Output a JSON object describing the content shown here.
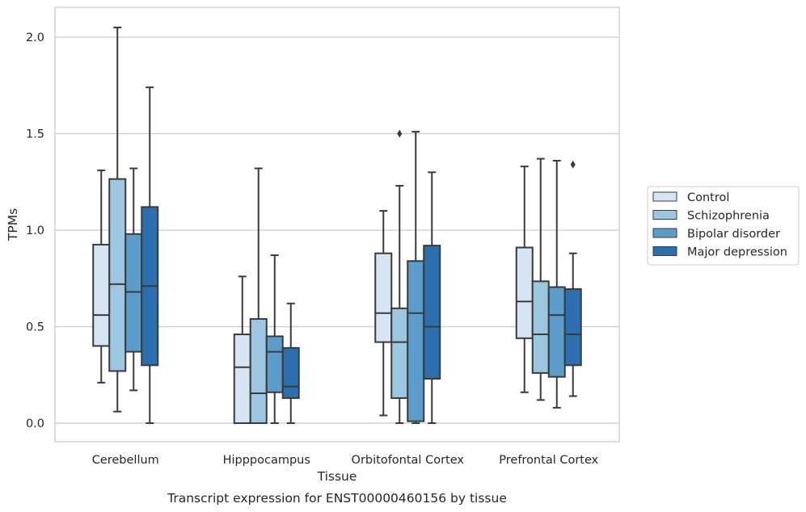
{
  "chart_data": {
    "type": "box",
    "caption": "Transcript expression for ENST00000460156 by tissue",
    "xlabel": "Tissue",
    "ylabel": "TPMs",
    "ylim": [
      -0.1,
      2.15
    ],
    "yticks": [
      "0.0",
      "0.5",
      "1.0",
      "1.5",
      "2.0"
    ],
    "grid": "horizontal",
    "legend_position": "right",
    "categories": [
      "Cerebellum",
      "Hipppocampus",
      "Orbitofontal Cortex",
      "Prefrontal Cortex"
    ],
    "series": [
      {
        "name": "Control",
        "color": "#d6e5f4",
        "boxes": [
          {
            "whislo": 0.21,
            "q1": 0.4,
            "med": 0.56,
            "q3": 0.925,
            "whishi": 1.31,
            "fliers": []
          },
          {
            "whislo": 0.0,
            "q1": 0.0,
            "med": 0.29,
            "q3": 0.46,
            "whishi": 0.76,
            "fliers": []
          },
          {
            "whislo": 0.04,
            "q1": 0.42,
            "med": 0.57,
            "q3": 0.88,
            "whishi": 1.1,
            "fliers": []
          },
          {
            "whislo": 0.16,
            "q1": 0.44,
            "med": 0.63,
            "q3": 0.91,
            "whishi": 1.33,
            "fliers": []
          }
        ]
      },
      {
        "name": "Schizophrenia",
        "color": "#9dc7e0",
        "boxes": [
          {
            "whislo": 0.06,
            "q1": 0.27,
            "med": 0.72,
            "q3": 1.265,
            "whishi": 2.05,
            "fliers": []
          },
          {
            "whislo": 0.0,
            "q1": 0.0,
            "med": 0.155,
            "q3": 0.54,
            "whishi": 1.32,
            "fliers": []
          },
          {
            "whislo": 0.0,
            "q1": 0.13,
            "med": 0.42,
            "q3": 0.595,
            "whishi": 1.23,
            "fliers": [
              1.5
            ]
          },
          {
            "whislo": 0.12,
            "q1": 0.26,
            "med": 0.46,
            "q3": 0.735,
            "whishi": 1.37,
            "fliers": []
          }
        ]
      },
      {
        "name": "Bipolar disorder",
        "color": "#5b9ccb",
        "boxes": [
          {
            "whislo": 0.17,
            "q1": 0.37,
            "med": 0.68,
            "q3": 0.98,
            "whishi": 1.32,
            "fliers": []
          },
          {
            "whislo": 0.0,
            "q1": 0.16,
            "med": 0.37,
            "q3": 0.45,
            "whishi": 0.87,
            "fliers": []
          },
          {
            "whislo": 0.0,
            "q1": 0.01,
            "med": 0.57,
            "q3": 0.84,
            "whishi": 1.51,
            "fliers": []
          },
          {
            "whislo": 0.08,
            "q1": 0.24,
            "med": 0.56,
            "q3": 0.705,
            "whishi": 1.36,
            "fliers": []
          }
        ]
      },
      {
        "name": "Major depression",
        "color": "#2c6fae",
        "boxes": [
          {
            "whislo": 0.0,
            "q1": 0.3,
            "med": 0.71,
            "q3": 1.12,
            "whishi": 1.74,
            "fliers": []
          },
          {
            "whislo": 0.0,
            "q1": 0.13,
            "med": 0.19,
            "q3": 0.39,
            "whishi": 0.62,
            "fliers": []
          },
          {
            "whislo": 0.0,
            "q1": 0.23,
            "med": 0.5,
            "q3": 0.92,
            "whishi": 1.3,
            "fliers": []
          },
          {
            "whislo": 0.14,
            "q1": 0.3,
            "med": 0.46,
            "q3": 0.695,
            "whishi": 0.88,
            "fliers": [
              1.34
            ]
          }
        ]
      }
    ]
  }
}
